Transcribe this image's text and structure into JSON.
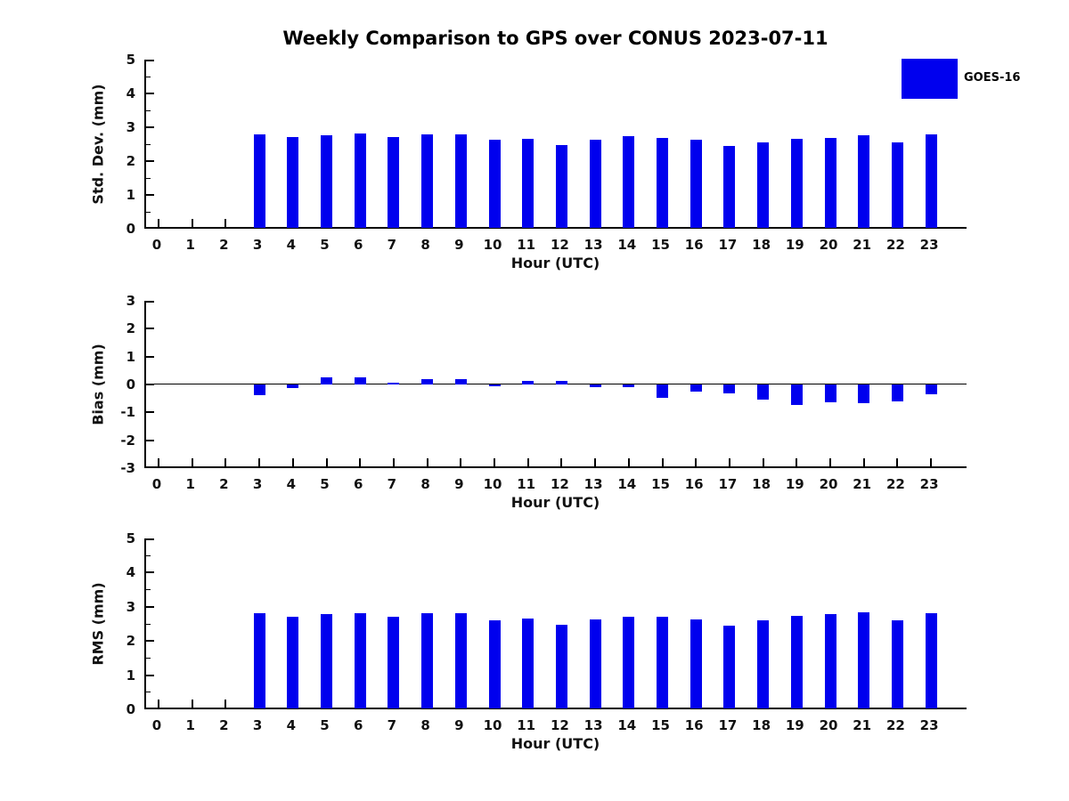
{
  "title": "Weekly Comparison to GPS over CONUS 2023-07-11",
  "legend": {
    "label": "GOES-16",
    "swatch_color": "#0000ee"
  },
  "colors": {
    "bar": "#0000ee",
    "axis": "#000000",
    "text": "#111111"
  },
  "chart_data": [
    {
      "type": "bar",
      "ylabel": "Std. Dev. (mm)",
      "xlabel": "Hour (UTC)",
      "ylim": [
        0,
        5
      ],
      "yticks": [
        0,
        1,
        2,
        3,
        4,
        5
      ],
      "minor_step": 0.5,
      "zero_line": false,
      "grid": false,
      "legend_position": "upper-right-outside",
      "categories": [
        0,
        1,
        2,
        3,
        4,
        5,
        6,
        7,
        8,
        9,
        10,
        11,
        12,
        13,
        14,
        15,
        16,
        17,
        18,
        19,
        20,
        21,
        22,
        23
      ],
      "series": [
        {
          "name": "GOES-16",
          "values": [
            null,
            null,
            null,
            2.8,
            2.72,
            2.77,
            2.82,
            2.72,
            2.8,
            2.8,
            2.62,
            2.67,
            2.47,
            2.63,
            2.74,
            2.69,
            2.62,
            2.46,
            2.54,
            2.66,
            2.69,
            2.77,
            2.54,
            2.79
          ]
        }
      ]
    },
    {
      "type": "bar",
      "ylabel": "Bias (mm)",
      "xlabel": "Hour (UTC)",
      "ylim": [
        -3,
        3
      ],
      "yticks": [
        -3,
        -2,
        -1,
        0,
        1,
        2,
        3
      ],
      "minor_step": null,
      "zero_line": true,
      "grid": false,
      "categories": [
        0,
        1,
        2,
        3,
        4,
        5,
        6,
        7,
        8,
        9,
        10,
        11,
        12,
        13,
        14,
        15,
        16,
        17,
        18,
        19,
        20,
        21,
        22,
        23
      ],
      "series": [
        {
          "name": "GOES-16",
          "values": [
            null,
            null,
            null,
            -0.37,
            -0.13,
            0.24,
            0.24,
            0.05,
            0.19,
            0.19,
            -0.05,
            0.14,
            0.14,
            -0.11,
            -0.08,
            -0.47,
            -0.25,
            -0.32,
            -0.55,
            -0.74,
            -0.65,
            -0.68,
            -0.6,
            -0.35
          ]
        }
      ]
    },
    {
      "type": "bar",
      "ylabel": "RMS (mm)",
      "xlabel": "Hour (UTC)",
      "ylim": [
        0,
        5
      ],
      "yticks": [
        0,
        1,
        2,
        3,
        4,
        5
      ],
      "minor_step": 0.5,
      "zero_line": false,
      "grid": false,
      "categories": [
        0,
        1,
        2,
        3,
        4,
        5,
        6,
        7,
        8,
        9,
        10,
        11,
        12,
        13,
        14,
        15,
        16,
        17,
        18,
        19,
        20,
        21,
        22,
        23
      ],
      "series": [
        {
          "name": "GOES-16",
          "values": [
            null,
            null,
            null,
            2.8,
            2.72,
            2.78,
            2.8,
            2.72,
            2.8,
            2.8,
            2.6,
            2.65,
            2.47,
            2.64,
            2.72,
            2.72,
            2.64,
            2.45,
            2.61,
            2.74,
            2.79,
            2.85,
            2.6,
            2.81
          ]
        }
      ]
    }
  ]
}
